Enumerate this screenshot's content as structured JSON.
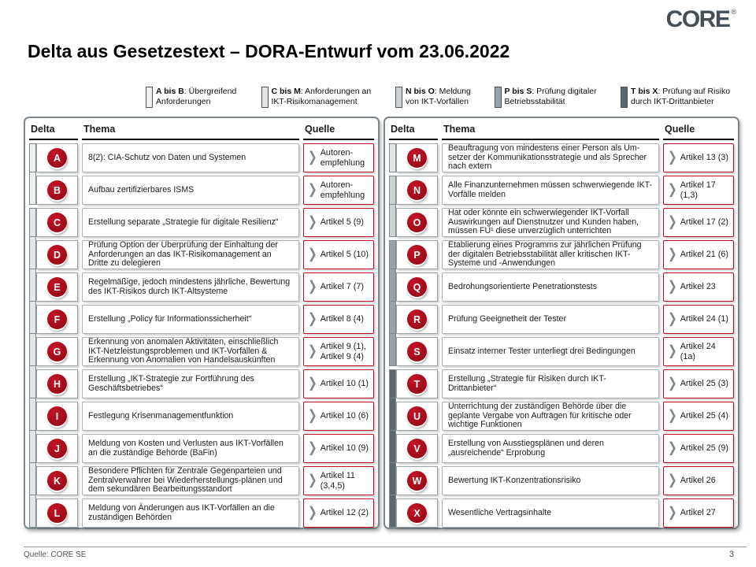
{
  "header": {
    "logo_text": "CORE",
    "logo_reg": "®",
    "title": "Delta aus Gesetzestext – DORA-Entwurf vom 23.06.2022"
  },
  "legend": {
    "items": [
      {
        "range": "A bis B",
        "label": "Übergreifend Anforderungen"
      },
      {
        "range": "C bis M",
        "label": "Anforderungen an IKT-Risikomanagement"
      },
      {
        "range": "N bis O",
        "label": "Meldung von IKT-Vorfällen"
      },
      {
        "range": "P bis S",
        "label": "Prüfung digitaler Betriebsstabilität"
      },
      {
        "range": "T bis X",
        "label": "Prüfung auf Risiko durch IKT-Drittanbieter"
      }
    ]
  },
  "table": {
    "columns": [
      "Delta",
      "Thema",
      "Quelle"
    ]
  },
  "rows_left": [
    {
      "letter": "A",
      "thema": "8(2): CIA-Schutz von Daten und Systemen",
      "quelle": "Autoren-empfehlung"
    },
    {
      "letter": "B",
      "thema": "Aufbau zertifizierbares ISMS",
      "quelle": "Autoren-empfehlung"
    },
    {
      "letter": "C",
      "thema": "Erstellung separate „Strategie für digitale Resilienz“",
      "quelle": "Artikel 5 (9)"
    },
    {
      "letter": "D",
      "thema": "Prüfung Option der Überprüfung der Einhaltung der Anforderungen an das IKT-Risikomanagement an Dritte zu delegieren",
      "quelle": "Artikel 5 (10)"
    },
    {
      "letter": "E",
      "thema": "Regelmäßige, jedoch mindestens jährliche, Bewertung des IKT-Risikos durch IKT-Altsysteme",
      "quelle": "Artikel 7 (7)"
    },
    {
      "letter": "F",
      "thema": "Erstellung „Policy für Informationssicherheit“",
      "quelle": "Artikel 8 (4)"
    },
    {
      "letter": "G",
      "thema": "Erkennung von anomalen Aktivitäten, einschließlich IKT-Netzleistungsproblemen und IKT-Vorfällen & Erkennung von Anomalien von Handelsauskünften",
      "quelle": "Artikel 9 (1), Artikel 9 (4)"
    },
    {
      "letter": "H",
      "thema": "Erstellung „IKT-Strategie zur Fortführung des Geschäftsbetriebes“",
      "quelle": "Artikel 10 (1)"
    },
    {
      "letter": "I",
      "thema": "Festlegung Krisenmanagementfunktion",
      "quelle": "Artikel 10 (6)"
    },
    {
      "letter": "J",
      "thema": "Meldung von Kosten und Verlusten aus IKT-Vorfällen an die zuständige Behörde (BaFin)",
      "quelle": "Artikel 10 (9)"
    },
    {
      "letter": "K",
      "thema": "Besondere Pflichten für Zentrale Gegenparteien und Zentralverwahrer bei Wiederherstellungs-plänen und dem sekundären Bearbeitungsstandort",
      "quelle": "Artikel 11 (3,4,5)"
    },
    {
      "letter": "L",
      "thema": "Meldung von Änderungen aus IKT-Vorfällen an die zuständigen Behörden",
      "quelle": "Artikel 12 (2)"
    }
  ],
  "rows_right": [
    {
      "letter": "M",
      "thema": "Beauftragung von mindestens einer Person als Um-setzer der Kommunikationsstrategie und als Sprecher nach extern",
      "quelle": "Artikel 13 (3)"
    },
    {
      "letter": "N",
      "thema": "Alle Finanzunternehmen müssen schwerwiegende IKT-Vorfälle melden",
      "quelle": "Artikel 17 (1,3)"
    },
    {
      "letter": "O",
      "thema": "Hat oder könnte ein schwerwiegender IKT-Vorfall Auswirkungen auf Dienstnutzer und Kunden haben, müssen FU¹ diese unverzüglich unterrichten",
      "quelle": "Artikel 17 (2)"
    },
    {
      "letter": "P",
      "thema": "Etablierung eines Programms zur jährlichen Prüfung der digitalen Betriebsstabilität aller kritischen IKT-Systeme und -Anwendungen",
      "quelle": "Artikel 21 (6)"
    },
    {
      "letter": "Q",
      "thema": "Bedrohungsorientierte Penetrationstests",
      "quelle": "Artikel 23"
    },
    {
      "letter": "R",
      "thema": "Prüfung Geeignetheit der Tester",
      "quelle": "Artikel 24 (1)"
    },
    {
      "letter": "S",
      "thema": "Einsatz interner Tester unterliegt drei Bedingungen",
      "quelle": "Artikel 24 (1a)"
    },
    {
      "letter": "T",
      "thema": "Erstellung „Strategie für Risiken durch IKT-Drittanbieter“",
      "quelle": "Artikel 25 (3)"
    },
    {
      "letter": "U",
      "thema": "Unterrichtung der zuständigen Behörde über die geplante Vergabe von Aufträgen für kritische oder wichtige Funktionen",
      "quelle": "Artikel 25 (4)"
    },
    {
      "letter": "V",
      "thema": "Erstellung von Ausstiegsplänen und deren „ausreichende“ Erprobung",
      "quelle": "Artikel 25 (9)"
    },
    {
      "letter": "W",
      "thema": "Bewertung IKT-Konzentrationsrisiko",
      "quelle": "Artikel 26"
    },
    {
      "letter": "X",
      "thema": "Wesentliche Vertragsinhalte",
      "quelle": "Artikel 27"
    }
  ],
  "icons": {
    "chevron": "❯"
  },
  "footer": {
    "source": "Quelle: CORE SE",
    "page": "3"
  },
  "colors": {
    "badge_red": "#a50d1b",
    "quelle_border": "#c00a1e",
    "table_border": "#7c878c",
    "logo_color": "#454f58",
    "group_colors": [
      "#eef0f0",
      "#e2e6e6",
      "#ccd2d3",
      "#99a3a7",
      "#5d686d"
    ]
  }
}
